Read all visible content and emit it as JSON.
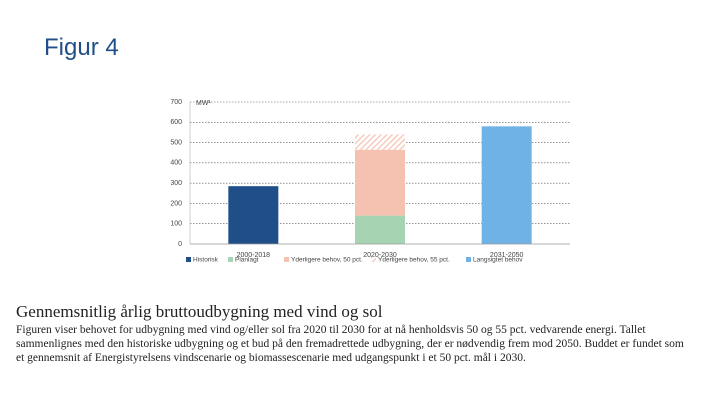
{
  "figure_label": "Figur 4",
  "chart_data": {
    "type": "stacked_bar",
    "y_unit_label": "MW¹",
    "categories": [
      "2000-2018",
      "2020-2030",
      "2031-2050"
    ],
    "series": [
      {
        "name": "Historisk",
        "color": "#1f4e89",
        "values": [
          285,
          null,
          null
        ]
      },
      {
        "name": "Planlagt",
        "color": "#a6d4b3",
        "values": [
          null,
          140,
          null
        ]
      },
      {
        "name": "Yderligere behov, 50 pct.",
        "color": "#f5c2b2",
        "values": [
          null,
          325,
          null
        ]
      },
      {
        "name": "Yderligere behov, 55 pct.",
        "color": "#f5c2b2",
        "hatch": true,
        "values": [
          null,
          75,
          null
        ]
      },
      {
        "name": "Langsigtet behov",
        "color": "#6fb2e5",
        "values": [
          null,
          null,
          580
        ]
      }
    ],
    "ylim": [
      0,
      700
    ],
    "yticks": [
      0,
      100,
      200,
      300,
      400,
      500,
      600,
      700
    ],
    "grid": true,
    "legend": "bottom"
  },
  "caption": {
    "title": "Gennemsnitlig årlig bruttoudbygning med vind og sol",
    "text": "Figuren viser behovet for udbygning med vind og/eller sol fra 2020 til 2030 for at nå henholdsvis 50 og 55 pct. vedvarende energi. Tallet sammenlignes med den historiske udbygning og et bud på den fremadrettede udbygning, der er nødvendig frem mod 2050. Buddet er fundet som et gennemsnit af Energistyrelsens vindscenarie og biomassescenarie med udgangspunkt i et 50 pct. mål i 2030."
  }
}
